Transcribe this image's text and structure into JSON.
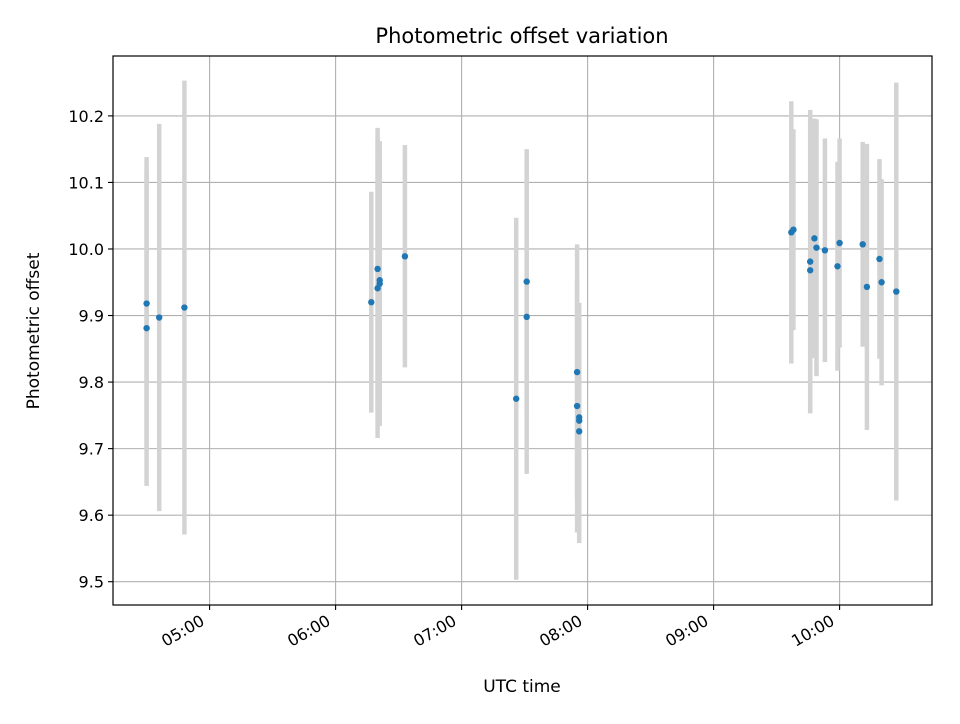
{
  "colors": {
    "point": "#1f77b4",
    "errorbar": "#d3d3d3",
    "grid": "#b0b0b0",
    "axis": "#000000"
  },
  "chart_data": {
    "type": "scatter",
    "title": "Photometric offset variation",
    "xlabel": "UTC time",
    "ylabel": "Photometric offset",
    "x_unit": "HH:MM",
    "xlim": [
      "04:14",
      "10:44"
    ],
    "ylim": [
      9.465,
      10.29
    ],
    "xticks": [
      "05:00",
      "06:00",
      "07:00",
      "08:00",
      "09:00",
      "10:00"
    ],
    "yticks": [
      9.5,
      9.6,
      9.7,
      9.8,
      9.9,
      10.0,
      10.1,
      10.2
    ],
    "grid": true,
    "legend": "none",
    "points": [
      {
        "x": "04:30",
        "y": 9.918,
        "yerr": 0.22
      },
      {
        "x": "04:30",
        "y": 9.881,
        "yerr": 0.237
      },
      {
        "x": "04:36",
        "y": 9.897,
        "yerr": 0.291
      },
      {
        "x": "04:48",
        "y": 9.912,
        "yerr": 0.341
      },
      {
        "x": "06:17",
        "y": 9.92,
        "yerr": 0.166
      },
      {
        "x": "06:20",
        "y": 9.941,
        "yerr": 0.225
      },
      {
        "x": "06:20",
        "y": 9.97,
        "yerr": 0.212
      },
      {
        "x": "06:21",
        "y": 9.953,
        "yerr": 0.187
      },
      {
        "x": "06:21",
        "y": 9.948,
        "yerr": 0.214
      },
      {
        "x": "06:33",
        "y": 9.989,
        "yerr": 0.167
      },
      {
        "x": "07:26",
        "y": 9.775,
        "yerr": 0.272
      },
      {
        "x": "07:31",
        "y": 9.951,
        "yerr": 0.199
      },
      {
        "x": "07:31",
        "y": 9.898,
        "yerr": 0.236
      },
      {
        "x": "07:55",
        "y": 9.815,
        "yerr": 0.192
      },
      {
        "x": "07:55",
        "y": 9.764,
        "yerr": 0.19
      },
      {
        "x": "07:56",
        "y": 9.747,
        "yerr": 0.172
      },
      {
        "x": "07:56",
        "y": 9.742,
        "yerr": 0.152
      },
      {
        "x": "07:56",
        "y": 9.726,
        "yerr": 0.168
      },
      {
        "x": "09:37",
        "y": 10.025,
        "yerr": 0.197
      },
      {
        "x": "09:38",
        "y": 10.029,
        "yerr": 0.151
      },
      {
        "x": "09:46",
        "y": 9.968,
        "yerr": 0.21
      },
      {
        "x": "09:46",
        "y": 9.981,
        "yerr": 0.228
      },
      {
        "x": "09:48",
        "y": 10.016,
        "yerr": 0.18
      },
      {
        "x": "09:49",
        "y": 10.002,
        "yerr": 0.193
      },
      {
        "x": "09:53",
        "y": 9.998,
        "yerr": 0.168
      },
      {
        "x": "09:59",
        "y": 9.974,
        "yerr": 0.157
      },
      {
        "x": "10:00",
        "y": 10.009,
        "yerr": 0.157
      },
      {
        "x": "10:11",
        "y": 10.007,
        "yerr": 0.154
      },
      {
        "x": "10:13",
        "y": 9.943,
        "yerr": 0.215
      },
      {
        "x": "10:19",
        "y": 9.985,
        "yerr": 0.15
      },
      {
        "x": "10:20",
        "y": 9.95,
        "yerr": 0.155
      },
      {
        "x": "10:27",
        "y": 9.936,
        "yerr": 0.314
      }
    ]
  }
}
